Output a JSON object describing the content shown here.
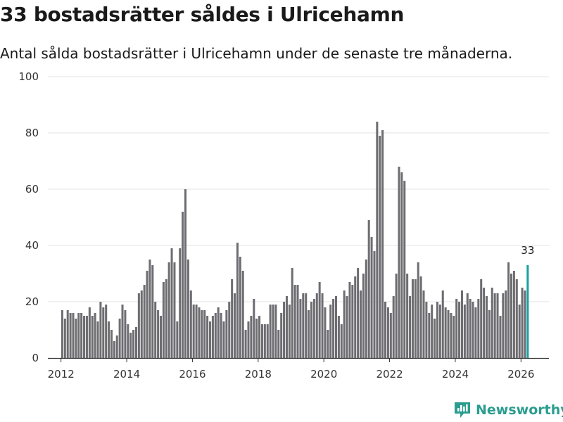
{
  "header": {
    "title": "33 bostadsrätter såldes i Ulricehamn",
    "subtitle": "Antal sålda bostadsrätter i Ulricehamn under de senaste tre månaderna."
  },
  "brand": {
    "name": "Newsworthy",
    "icon": "newsworthy-logo-icon",
    "color": "#2a9d8f"
  },
  "colors": {
    "bar": "#6e6d72",
    "highlight": "#17a2a0",
    "grid": "#e3e3e3",
    "axis": "#333333"
  },
  "chart_data": {
    "type": "bar",
    "title": "33 bostadsrätter såldes i Ulricehamn",
    "subtitle": "Antal sålda bostadsrätter i Ulricehamn under de senaste tre månaderna.",
    "xlabel": "",
    "ylabel": "",
    "x_start": 2012,
    "x_step_months": 1,
    "ylim": [
      0,
      100
    ],
    "xlim": [
      2011.6,
      2026.85
    ],
    "y_ticks": [
      0,
      20,
      40,
      60,
      80,
      100
    ],
    "x_ticks": [
      2012,
      2014,
      2016,
      2018,
      2020,
      2022,
      2024,
      2026
    ],
    "grid": true,
    "highlight_index": 170,
    "highlight_label": "33",
    "values": [
      17,
      14,
      17,
      16,
      16,
      14,
      16,
      16,
      15,
      15,
      18,
      15,
      16,
      13,
      20,
      18,
      19,
      13,
      10,
      6,
      8,
      14,
      19,
      17,
      12,
      9,
      10,
      11,
      23,
      24,
      26,
      31,
      35,
      33,
      20,
      17,
      15,
      27,
      28,
      34,
      39,
      34,
      13,
      39,
      52,
      60,
      35,
      24,
      19,
      19,
      18,
      17,
      17,
      15,
      13,
      15,
      16,
      18,
      16,
      13,
      17,
      20,
      28,
      23,
      41,
      36,
      31,
      10,
      13,
      15,
      21,
      14,
      15,
      12,
      12,
      12,
      19,
      19,
      19,
      10,
      16,
      20,
      22,
      19,
      32,
      26,
      26,
      21,
      23,
      23,
      17,
      20,
      21,
      23,
      27,
      23,
      18,
      10,
      19,
      21,
      22,
      15,
      12,
      24,
      22,
      27,
      26,
      29,
      32,
      24,
      30,
      35,
      49,
      43,
      38,
      84,
      79,
      81,
      20,
      18,
      16,
      22,
      30,
      68,
      66,
      63,
      30,
      22,
      28,
      28,
      34,
      29,
      24,
      20,
      16,
      19,
      14,
      20,
      19,
      24,
      18,
      17,
      16,
      15,
      21,
      20,
      24,
      19,
      23,
      21,
      20,
      18,
      21,
      28,
      25,
      22,
      17,
      25,
      23,
      23,
      15,
      23,
      24,
      34,
      30,
      31,
      28,
      19,
      25,
      24,
      33
    ]
  }
}
